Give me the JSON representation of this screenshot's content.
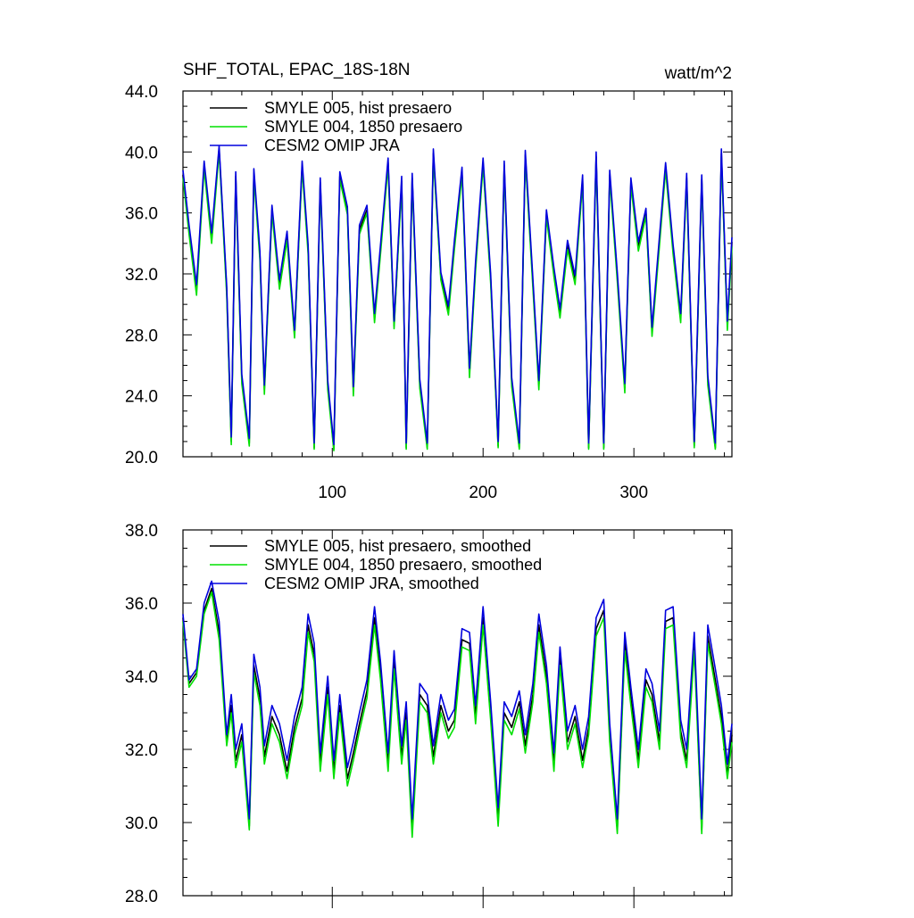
{
  "chart_data": [
    {
      "type": "line",
      "title": "SHF_TOTAL, EPAC_18S-18N",
      "units_label": "watt/m^2",
      "xlabel": "",
      "ylabel": "",
      "xlim": [
        1,
        365
      ],
      "ylim": [
        20,
        44
      ],
      "xticks": [
        100,
        200,
        300
      ],
      "yticks": [
        20,
        24,
        28,
        32,
        36,
        40,
        44
      ],
      "ytick_labels": [
        "20.0",
        "24.0",
        "28.0",
        "32.0",
        "36.0",
        "40.0",
        "44.0"
      ],
      "grid": false,
      "legend_position": "top-left",
      "colors": {
        "hist": "#000000",
        "y1850": "#00e000",
        "omip": "#0000dd"
      },
      "x": [
        1,
        5,
        10,
        15,
        20,
        25,
        30,
        33,
        36,
        40,
        45,
        48,
        52,
        55,
        60,
        65,
        70,
        75,
        80,
        84,
        88,
        92,
        97,
        101,
        105,
        110,
        114,
        118,
        123,
        128,
        132,
        137,
        141,
        146,
        149,
        153,
        158,
        163,
        167,
        172,
        177,
        181,
        186,
        191,
        195,
        200,
        205,
        210,
        214,
        219,
        224,
        228,
        233,
        237,
        242,
        247,
        251,
        256,
        261,
        266,
        270,
        275,
        280,
        284,
        289,
        294,
        298,
        303,
        308,
        312,
        317,
        321,
        326,
        331,
        335,
        340,
        345,
        349,
        354,
        358,
        362,
        365
      ],
      "series": [
        {
          "name": "SMYLE 005, hist presaero",
          "values": [
            38.5,
            34.9,
            31.0,
            39.1,
            34.4,
            40.2,
            30.9,
            21.0,
            38.4,
            25.1,
            20.9,
            38.6,
            33.2,
            24.4,
            36.2,
            31.3,
            34.5,
            28.0,
            39.1,
            33.6,
            20.6,
            38.0,
            24.7,
            20.5,
            38.4,
            36.1,
            24.3,
            34.9,
            36.2,
            29.1,
            33.6,
            39.3,
            28.6,
            38.1,
            20.6,
            38.3,
            24.8,
            20.6,
            39.9,
            31.8,
            29.6,
            33.9,
            38.7,
            25.5,
            32.5,
            39.3,
            31.7,
            20.7,
            39.1,
            24.9,
            20.6,
            39.8,
            31.4,
            24.7,
            35.9,
            32.1,
            29.4,
            33.9,
            31.6,
            38.2,
            20.6,
            39.7,
            20.6,
            38.5,
            31.8,
            24.5,
            38.0,
            33.8,
            36.0,
            28.2,
            34.2,
            39.0,
            33.6,
            29.1,
            38.3,
            20.7,
            38.2,
            25.0,
            20.6,
            39.9,
            28.6,
            34.1
          ]
        },
        {
          "name": "SMYLE 004, 1850 presaero",
          "values": [
            38.3,
            34.6,
            30.6,
            38.9,
            34.0,
            40.0,
            30.6,
            20.8,
            38.2,
            24.8,
            20.7,
            38.4,
            32.9,
            24.1,
            36.0,
            31.0,
            34.2,
            27.8,
            38.9,
            33.3,
            20.5,
            37.8,
            24.4,
            20.4,
            38.2,
            35.9,
            24.0,
            34.6,
            36.0,
            28.8,
            33.3,
            39.1,
            28.4,
            37.9,
            20.5,
            38.1,
            24.5,
            20.5,
            39.7,
            31.6,
            29.3,
            33.6,
            38.5,
            25.2,
            32.2,
            39.1,
            31.4,
            20.6,
            38.9,
            24.6,
            20.5,
            39.6,
            31.1,
            24.4,
            35.7,
            31.8,
            29.1,
            33.6,
            31.3,
            38.0,
            20.5,
            39.5,
            20.5,
            38.3,
            31.5,
            24.2,
            37.8,
            33.5,
            35.8,
            27.9,
            33.9,
            38.8,
            33.3,
            28.8,
            38.1,
            20.6,
            38.0,
            24.7,
            20.5,
            39.7,
            28.3,
            33.8
          ]
        },
        {
          "name": "CESM2 OMIP JRA",
          "values": [
            38.8,
            35.2,
            31.3,
            39.4,
            34.7,
            40.4,
            31.2,
            21.3,
            38.7,
            25.4,
            21.2,
            38.9,
            33.5,
            24.7,
            36.5,
            31.6,
            34.8,
            28.3,
            39.4,
            33.9,
            20.9,
            38.3,
            25.0,
            20.8,
            38.7,
            36.4,
            24.6,
            35.2,
            36.5,
            29.4,
            33.9,
            39.6,
            28.9,
            38.4,
            20.9,
            38.6,
            25.1,
            20.9,
            40.2,
            32.1,
            29.9,
            34.2,
            39.0,
            25.8,
            32.8,
            39.6,
            32.0,
            21.0,
            39.4,
            25.2,
            20.9,
            40.1,
            31.7,
            25.0,
            36.2,
            32.4,
            29.7,
            34.2,
            31.9,
            38.5,
            20.9,
            40.0,
            20.9,
            38.8,
            32.1,
            24.8,
            38.3,
            34.1,
            36.3,
            28.5,
            34.5,
            39.3,
            33.9,
            29.4,
            38.6,
            21.0,
            38.5,
            25.3,
            20.9,
            40.2,
            28.9,
            34.4
          ]
        }
      ]
    },
    {
      "type": "line",
      "title": "",
      "xlabel": "",
      "ylabel": "",
      "xlim": [
        1,
        365
      ],
      "ylim": [
        28,
        38
      ],
      "xticks": [
        100,
        200,
        300
      ],
      "yticks": [
        28,
        30,
        32,
        34,
        36,
        38
      ],
      "ytick_labels": [
        "28.0",
        "30.0",
        "32.0",
        "34.0",
        "36.0",
        "38.0"
      ],
      "grid": false,
      "legend_position": "top-left",
      "colors": {
        "hist": "#000000",
        "y1850": "#00e000",
        "omip": "#0000dd"
      },
      "x": [
        1,
        5,
        10,
        15,
        20,
        25,
        30,
        33,
        36,
        40,
        45,
        48,
        52,
        55,
        60,
        65,
        70,
        75,
        80,
        84,
        88,
        92,
        97,
        101,
        105,
        110,
        114,
        118,
        123,
        128,
        132,
        137,
        141,
        146,
        149,
        153,
        158,
        163,
        167,
        172,
        177,
        181,
        186,
        191,
        195,
        200,
        205,
        210,
        214,
        219,
        224,
        228,
        233,
        237,
        242,
        247,
        251,
        256,
        261,
        266,
        270,
        275,
        280,
        284,
        289,
        294,
        298,
        303,
        308,
        312,
        317,
        321,
        326,
        331,
        335,
        340,
        345,
        349,
        354,
        358,
        362,
        365
      ],
      "series": [
        {
          "name": "SMYLE 005, hist presaero, smoothed",
          "values": [
            35.6,
            33.8,
            34.1,
            35.8,
            36.4,
            35.2,
            32.2,
            33.2,
            31.7,
            32.4,
            29.9,
            34.3,
            33.4,
            31.8,
            32.9,
            32.4,
            31.4,
            32.6,
            33.4,
            35.4,
            34.6,
            31.6,
            33.7,
            31.4,
            33.2,
            31.2,
            31.9,
            32.7,
            33.6,
            35.6,
            34.1,
            31.6,
            34.4,
            31.8,
            33.0,
            29.8,
            33.5,
            33.2,
            31.8,
            33.2,
            32.5,
            32.8,
            35.0,
            34.9,
            32.9,
            35.6,
            33.0,
            30.1,
            33.0,
            32.6,
            33.3,
            32.1,
            33.5,
            35.4,
            34.0,
            31.6,
            34.5,
            32.2,
            32.9,
            31.7,
            32.6,
            35.3,
            35.8,
            32.4,
            29.8,
            34.9,
            33.4,
            31.7,
            33.9,
            33.5,
            32.2,
            35.5,
            35.6,
            32.5,
            31.7,
            34.9,
            29.8,
            35.1,
            33.9,
            32.9,
            31.3,
            32.4
          ]
        },
        {
          "name": "SMYLE 004, 1850 presaero, smoothed",
          "values": [
            35.5,
            33.7,
            34.0,
            35.7,
            36.3,
            35.0,
            32.1,
            33.0,
            31.5,
            32.2,
            29.8,
            34.1,
            33.2,
            31.6,
            32.7,
            32.2,
            31.2,
            32.4,
            33.2,
            35.2,
            34.4,
            31.4,
            33.5,
            31.2,
            33.0,
            31.0,
            31.7,
            32.5,
            33.4,
            35.4,
            33.9,
            31.4,
            34.2,
            31.6,
            32.8,
            29.6,
            33.3,
            33.0,
            31.6,
            33.0,
            32.3,
            32.6,
            34.8,
            34.7,
            32.7,
            35.4,
            32.8,
            29.9,
            32.8,
            32.4,
            33.1,
            31.9,
            33.3,
            35.2,
            33.8,
            31.4,
            34.3,
            32.0,
            32.7,
            31.5,
            32.4,
            35.1,
            35.6,
            32.2,
            29.7,
            34.7,
            33.2,
            31.5,
            33.7,
            33.3,
            32.0,
            35.3,
            35.4,
            32.3,
            31.5,
            34.7,
            29.7,
            34.9,
            33.7,
            32.7,
            31.2,
            32.2
          ]
        },
        {
          "name": "CESM2 OMIP JRA, smoothed",
          "values": [
            35.7,
            33.9,
            34.2,
            36.0,
            36.6,
            35.5,
            32.4,
            33.5,
            32.0,
            32.7,
            30.1,
            34.6,
            33.7,
            32.1,
            33.2,
            32.7,
            31.7,
            32.9,
            33.7,
            35.7,
            34.9,
            31.9,
            34.0,
            31.7,
            33.5,
            31.5,
            32.2,
            33.0,
            33.9,
            35.9,
            34.4,
            31.9,
            34.7,
            32.1,
            33.3,
            30.1,
            33.8,
            33.5,
            32.1,
            33.5,
            32.8,
            33.1,
            35.3,
            35.2,
            33.2,
            35.9,
            33.3,
            30.4,
            33.3,
            32.9,
            33.6,
            32.4,
            33.8,
            35.7,
            34.3,
            31.9,
            34.8,
            32.5,
            33.2,
            32.0,
            32.9,
            35.6,
            36.1,
            32.7,
            30.1,
            35.2,
            33.7,
            32.0,
            34.2,
            33.8,
            32.5,
            35.8,
            35.9,
            32.8,
            32.0,
            35.2,
            30.1,
            35.4,
            34.2,
            33.2,
            31.6,
            32.7
          ]
        }
      ]
    }
  ]
}
